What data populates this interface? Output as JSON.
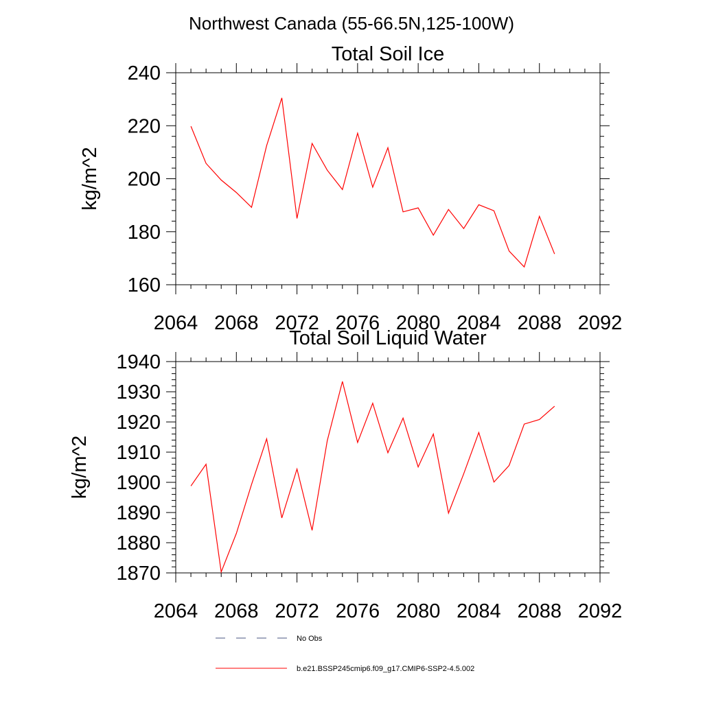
{
  "figure": {
    "title": "Northwest Canada (55-66.5N,125-100W)"
  },
  "chart_data": [
    {
      "type": "line",
      "title": "Total Soil Ice",
      "xlabel": "",
      "ylabel": "kg/m^2",
      "xlim": [
        2064,
        2092
      ],
      "ylim": [
        160,
        240
      ],
      "xticks": [
        2064,
        2068,
        2072,
        2076,
        2080,
        2084,
        2088,
        2092
      ],
      "yticks": [
        160,
        180,
        200,
        220,
        240
      ],
      "x": [
        2065,
        2066,
        2067,
        2068,
        2069,
        2070,
        2071,
        2072,
        2073,
        2074,
        2075,
        2076,
        2077,
        2078,
        2079,
        2080,
        2081,
        2082,
        2083,
        2084,
        2085,
        2086,
        2087,
        2088,
        2089
      ],
      "series": [
        {
          "name": "b.e21.BSSP245cmip6.f09_g17.CMIP6-SSP2-4.5.002",
          "color": "#ff0000",
          "values": [
            219.8,
            205.8,
            199.5,
            194.8,
            189.2,
            212.5,
            230.5,
            185.0,
            213.3,
            203.2,
            195.9,
            217.2,
            196.8,
            211.7,
            187.5,
            189.0,
            178.7,
            188.4,
            181.2,
            190.2,
            187.9,
            172.7,
            166.7,
            185.8,
            171.6
          ]
        }
      ]
    },
    {
      "type": "line",
      "title": "Total Soil Liquid Water",
      "xlabel": "",
      "ylabel": "kg/m^2",
      "xlim": [
        2064,
        2092
      ],
      "ylim": [
        1870,
        1940
      ],
      "xticks": [
        2064,
        2068,
        2072,
        2076,
        2080,
        2084,
        2088,
        2092
      ],
      "yticks": [
        1870,
        1880,
        1890,
        1900,
        1910,
        1920,
        1930,
        1940
      ],
      "x": [
        2065,
        2066,
        2067,
        2068,
        2069,
        2070,
        2071,
        2072,
        2073,
        2074,
        2075,
        2076,
        2077,
        2078,
        2079,
        2080,
        2081,
        2082,
        2083,
        2084,
        2085,
        2086,
        2087,
        2088,
        2089
      ],
      "series": [
        {
          "name": "b.e21.BSSP245cmip6.f09_g17.CMIP6-SSP2-4.5.002",
          "color": "#ff0000",
          "values": [
            1898.8,
            1906.0,
            1870.3,
            1883.1,
            1899.3,
            1914.4,
            1888.2,
            1904.4,
            1884.1,
            1913.8,
            1933.4,
            1913.2,
            1926.2,
            1909.8,
            1921.3,
            1905.1,
            1916.0,
            1889.8,
            1902.8,
            1916.5,
            1900.1,
            1905.6,
            1919.3,
            1920.8,
            1925.2
          ]
        }
      ]
    }
  ],
  "legend": [
    {
      "label": "No Obs",
      "color": "#4a5580",
      "style": "dashed"
    },
    {
      "label": "b.e21.BSSP245cmip6.f09_g17.CMIP6-SSP2-4.5.002",
      "color": "#ff0000",
      "style": "solid"
    }
  ]
}
